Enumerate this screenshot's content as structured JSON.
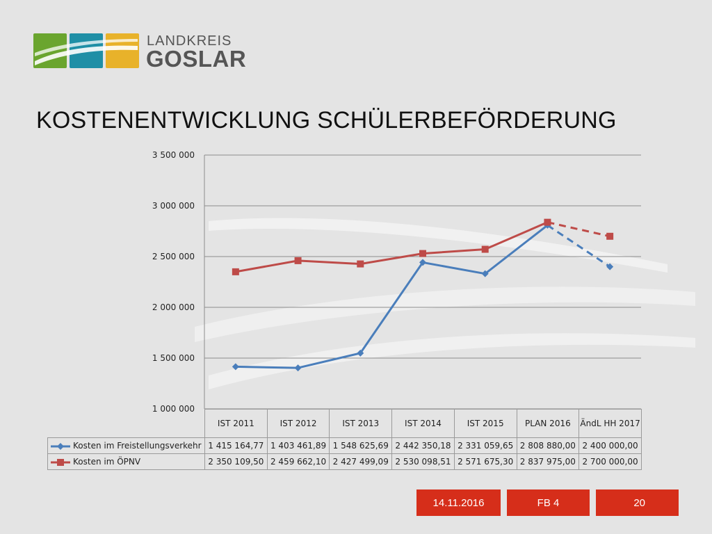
{
  "logo": {
    "line1": "LANDKREIS",
    "line2": "GOSLAR",
    "tile_colors": [
      "#6aa52e",
      "#1f8fa6",
      "#e8b22a"
    ]
  },
  "title": "KOSTENENTWICKLUNG SCHÜLERBEFÖRDERUNG",
  "chart_data": {
    "type": "line",
    "title": "",
    "xlabel": "",
    "ylabel": "",
    "categories": [
      "IST 2011",
      "IST 2012",
      "IST 2013",
      "IST 2014",
      "IST 2015",
      "PLAN 2016",
      "ÄndL HH 2017"
    ],
    "ylim": [
      1000000,
      3500000
    ],
    "yticks": [
      1000000,
      1500000,
      2000000,
      2500000,
      3000000,
      3500000
    ],
    "ytick_labels": [
      "1 000 000",
      "1 500 000",
      "2 000 000",
      "2 500 000",
      "3 000 000",
      "3 500 000"
    ],
    "grid": true,
    "legend": "data-table-below",
    "series": [
      {
        "name": "Kosten im Freistellungsverkehr",
        "color": "#4a7ebb",
        "marker": "diamond",
        "values": [
          1415164.77,
          1403461.89,
          1548625.69,
          2442350.18,
          2331059.65,
          2808880.0,
          2400000.0
        ],
        "labels": [
          "1 415 164,77",
          "1 403 461,89",
          "1 548 625,69",
          "2 442 350,18",
          "2 331 059,65",
          "2 808 880,00",
          "2 400 000,00"
        ],
        "dashed_from_index": 5
      },
      {
        "name": "Kosten im ÖPNV",
        "color": "#be4b48",
        "marker": "square",
        "values": [
          2350109.5,
          2459662.1,
          2427499.09,
          2530098.51,
          2571675.3,
          2837975.0,
          2700000.0
        ],
        "labels": [
          "2 350 109,50",
          "2 459 662,10",
          "2 427 499,09",
          "2 530 098,51",
          "2 571 675,30",
          "2 837 975,00",
          "2 700 000,00"
        ],
        "dashed_from_index": 5
      }
    ]
  },
  "footer": {
    "date": "14.11.2016",
    "dept": "FB 4",
    "page": "20",
    "color": "#d62e1a"
  }
}
